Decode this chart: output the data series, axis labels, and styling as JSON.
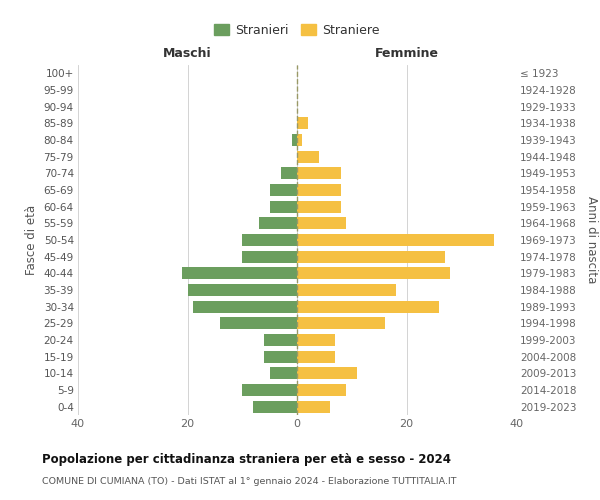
{
  "age_groups_bottom_to_top": [
    "0-4",
    "5-9",
    "10-14",
    "15-19",
    "20-24",
    "25-29",
    "30-34",
    "35-39",
    "40-44",
    "45-49",
    "50-54",
    "55-59",
    "60-64",
    "65-69",
    "70-74",
    "75-79",
    "80-84",
    "85-89",
    "90-94",
    "95-99",
    "100+"
  ],
  "birth_years_bottom_to_top": [
    "2019-2023",
    "2014-2018",
    "2009-2013",
    "2004-2008",
    "1999-2003",
    "1994-1998",
    "1989-1993",
    "1984-1988",
    "1979-1983",
    "1974-1978",
    "1969-1973",
    "1964-1968",
    "1959-1963",
    "1954-1958",
    "1949-1953",
    "1944-1948",
    "1939-1943",
    "1934-1938",
    "1929-1933",
    "1924-1928",
    "≤ 1923"
  ],
  "maschi_bottom_to_top": [
    8,
    10,
    5,
    6,
    6,
    14,
    19,
    20,
    21,
    10,
    10,
    7,
    5,
    5,
    3,
    0,
    1,
    0,
    0,
    0,
    0
  ],
  "femmine_bottom_to_top": [
    6,
    9,
    11,
    7,
    7,
    16,
    26,
    18,
    28,
    27,
    36,
    9,
    8,
    8,
    8,
    4,
    1,
    2,
    0,
    0,
    0
  ],
  "maschi_color": "#6b9e5e",
  "femmine_color": "#f5c042",
  "background_color": "#ffffff",
  "grid_color": "#cccccc",
  "title": "Popolazione per cittadinanza straniera per età e sesso - 2024",
  "subtitle": "COMUNE DI CUMIANA (TO) - Dati ISTAT al 1° gennaio 2024 - Elaborazione TUTTITALIA.IT",
  "xlabel_left": "Maschi",
  "xlabel_right": "Femmine",
  "ylabel_left": "Fasce di età",
  "ylabel_right": "Anni di nascita",
  "legend_maschi": "Stranieri",
  "legend_femmine": "Straniere",
  "xlim": 40,
  "dpi": 100,
  "figsize": [
    6.0,
    5.0
  ]
}
